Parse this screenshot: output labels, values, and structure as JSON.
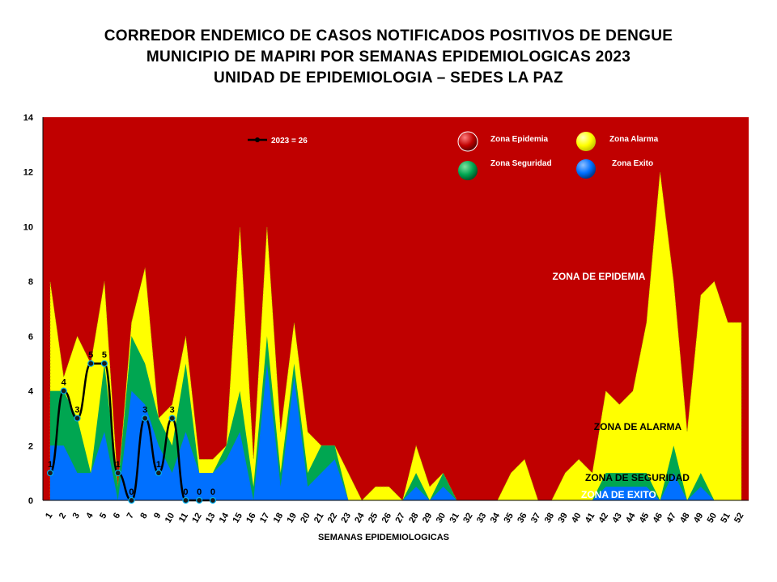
{
  "title_lines": [
    "CORREDOR ENDEMICO DE CASOS NOTIFICADOS POSITIVOS DE DENGUE",
    "MUNICIPIO DE MAPIRI POR SEMANAS EPIDEMIOLOGICAS 2023",
    "UNIDAD DE EPIDEMIOLOGIA – SEDES LA PAZ"
  ],
  "chart_data": {
    "type": "area",
    "title": "CORREDOR ENDEMICO DE CASOS NOTIFICADOS POSITIVOS DE DENGUE MUNICIPIO DE MAPIRI POR SEMANAS EPIDEMIOLOGICAS 2023 UNIDAD DE EPIDEMIOLOGIA – SEDES LA PAZ",
    "xlabel": "SEMANAS EPIDEMIOLOGICAS",
    "ylabel": "",
    "ylim": [
      0,
      14
    ],
    "yticks": [
      0,
      2,
      4,
      6,
      8,
      10,
      12,
      14
    ],
    "x": [
      1,
      2,
      3,
      4,
      5,
      6,
      7,
      8,
      9,
      10,
      11,
      12,
      13,
      14,
      15,
      16,
      17,
      18,
      19,
      20,
      21,
      22,
      23,
      24,
      25,
      26,
      27,
      28,
      29,
      30,
      31,
      32,
      33,
      34,
      35,
      36,
      37,
      38,
      39,
      40,
      41,
      42,
      43,
      44,
      45,
      46,
      47,
      48,
      49,
      50,
      51,
      52
    ],
    "x_tick_labels": [
      "1",
      "2",
      "3",
      "4",
      "5",
      "6",
      "7",
      "8",
      "9",
      "10",
      "11",
      "12",
      "13",
      "14",
      "15",
      "16",
      "17",
      "18",
      "19",
      "20",
      "21",
      "22",
      "23",
      "24",
      "25",
      "26",
      "27",
      "28",
      "29",
      "30",
      "31",
      "32",
      "33",
      "34",
      "35",
      "36",
      "37",
      "38",
      "39",
      "40",
      "41",
      "42",
      "43",
      "44",
      "45",
      "46",
      "47",
      "48",
      "49",
      "50",
      "51",
      "52"
    ],
    "grid": false,
    "series": [
      {
        "name": "Zona Epidemia",
        "color": "#c00000",
        "values": [
          14,
          14,
          14,
          14,
          14,
          14,
          14,
          14,
          14,
          14,
          14,
          14,
          14,
          14,
          14,
          14,
          14,
          14,
          14,
          14,
          14,
          14,
          14,
          14,
          14,
          14,
          14,
          14,
          14,
          14,
          14,
          14,
          14,
          14,
          14,
          14,
          14,
          14,
          14,
          14,
          14,
          14,
          14,
          14,
          14,
          14,
          14,
          14,
          14,
          14,
          14,
          14
        ]
      },
      {
        "name": "Zona Alarma",
        "color": "#ffff00",
        "values": [
          8,
          4.5,
          6,
          5,
          8,
          0.5,
          6.5,
          8.5,
          3,
          3.5,
          6,
          1.5,
          1.5,
          2,
          10,
          1.5,
          10,
          2.5,
          6.5,
          2.5,
          2,
          2,
          1,
          0,
          0.5,
          0.5,
          0,
          2,
          0.5,
          1,
          0,
          0,
          0,
          0,
          1,
          1.5,
          0,
          0,
          1,
          1.5,
          1,
          4,
          3.5,
          4,
          6.5,
          12,
          8,
          2.5,
          7.5,
          8,
          6.5,
          6.5
        ]
      },
      {
        "name": "Zona Seguridad",
        "color": "#00a651",
        "values": [
          4,
          4,
          3,
          1,
          5,
          0.5,
          6,
          5,
          3,
          2,
          5,
          1,
          1,
          2,
          4,
          0.5,
          6,
          1,
          5,
          1,
          2,
          2,
          0,
          0,
          0,
          0,
          0,
          1,
          0,
          1,
          0,
          0,
          0,
          0,
          0,
          0,
          0,
          0,
          0,
          0,
          0,
          1,
          1,
          1,
          1,
          0,
          2,
          0,
          1,
          0,
          0,
          0
        ]
      },
      {
        "name": "Zona Exito",
        "color": "#0070ff",
        "values": [
          2,
          2,
          1,
          1,
          2.5,
          0,
          4,
          3.5,
          2,
          1,
          2.5,
          1,
          1,
          1.5,
          2.5,
          0,
          5,
          0.5,
          4.5,
          0.5,
          1,
          1.5,
          0,
          0,
          0,
          0,
          0,
          0.5,
          0,
          0.5,
          0,
          0,
          0,
          0,
          0,
          0,
          0,
          0,
          0,
          0,
          0,
          0.5,
          0.5,
          0.5,
          0.5,
          0,
          1,
          0,
          0.5,
          0,
          0,
          0
        ]
      }
    ],
    "line_series": {
      "name": "2023 = 26",
      "x": [
        1,
        2,
        3,
        4,
        5,
        6,
        7,
        8,
        9,
        10,
        11,
        12,
        13
      ],
      "values": [
        1,
        4,
        3,
        5,
        5,
        1,
        0,
        3,
        1,
        3,
        0,
        0,
        0
      ],
      "data_labels": [
        "1",
        "4",
        "3",
        "5",
        "5",
        "1",
        "0",
        "3",
        "1",
        "3",
        "0",
        "0",
        "0"
      ]
    },
    "legend": {
      "placement": "top-right",
      "line_label": "2023 = 26",
      "items": [
        {
          "label": "Zona Epidemia",
          "color": "#c00000"
        },
        {
          "label": "Zona Alarma",
          "color": "#ffff00"
        },
        {
          "label": "Zona Seguridad",
          "color": "#00a651"
        },
        {
          "label": "Zona Exito",
          "color": "#0070ff"
        }
      ]
    },
    "zone_labels": {
      "epidemia": "ZONA DE EPIDEMIA",
      "alarma": "ZONA DE ALARMA",
      "seguridad": "ZONA DE SEGURIDAD",
      "exito": "ZONA DE EXITO"
    }
  }
}
